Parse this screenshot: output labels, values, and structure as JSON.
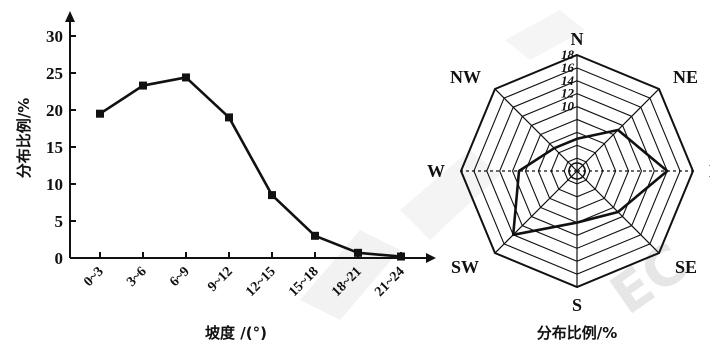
{
  "chart_data": [
    {
      "type": "line",
      "categories": [
        "0~3",
        "3~6",
        "6~9",
        "9~12",
        "12~15",
        "15~18",
        "18~21",
        "21~24"
      ],
      "values": [
        19.5,
        23.3,
        24.4,
        19.0,
        8.5,
        3.0,
        0.7,
        0.2
      ],
      "xlabel": "坡度 /(°)",
      "ylabel": "分布比例/%",
      "ylim": [
        0,
        30
      ],
      "yticks": [
        0,
        5,
        10,
        15,
        20,
        25,
        30
      ],
      "grid": false,
      "color": "#111111"
    },
    {
      "type": "radar",
      "categories": [
        "N",
        "NE",
        "E",
        "SE",
        "S",
        "SW",
        "W",
        "NW"
      ],
      "values": [
        5,
        9,
        14,
        9,
        8,
        14,
        9,
        5
      ],
      "rlim": [
        0,
        18
      ],
      "rticks": [
        2,
        4,
        6,
        8,
        10,
        12,
        14,
        16,
        18
      ],
      "rtick_labels": [
        "10",
        "12",
        "14",
        "16",
        "18"
      ],
      "xlabel": "分布比例/%",
      "grid": true,
      "color": "#111111"
    }
  ],
  "watermark": "EC"
}
